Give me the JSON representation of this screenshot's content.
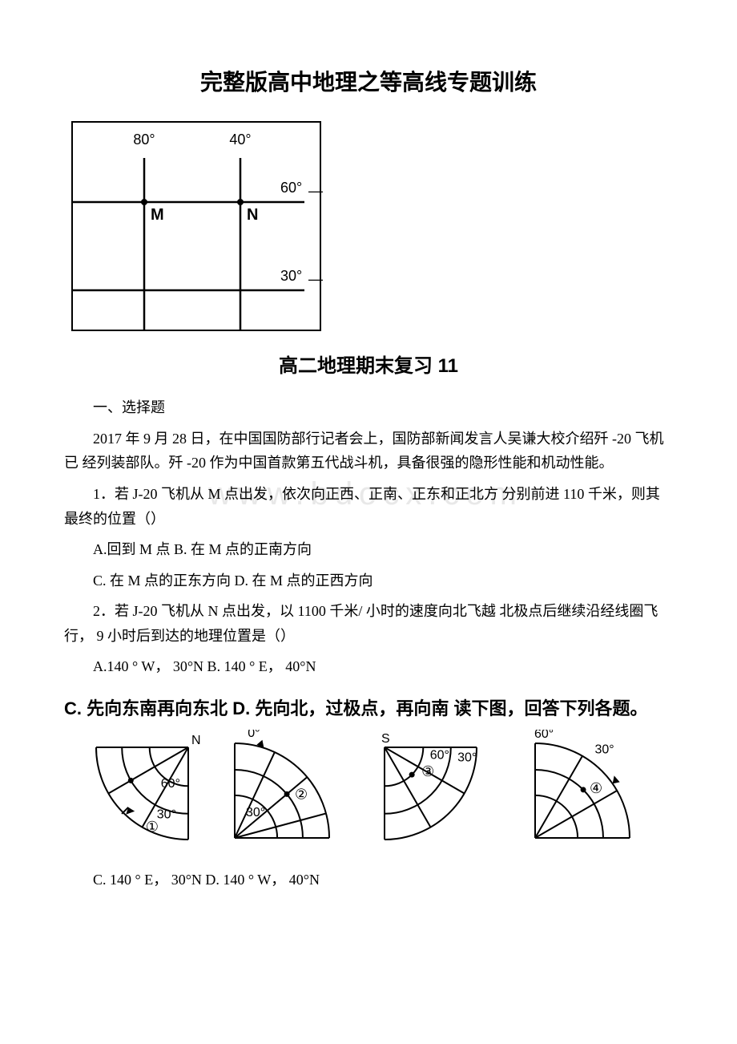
{
  "title": "完整版高中地理之等高线专题训练",
  "grid_map": {
    "lon_labels": [
      "80°",
      "40°"
    ],
    "lat_labels": [
      "60°",
      "30°"
    ],
    "points": [
      "M",
      "N"
    ],
    "stroke": "#000000",
    "font_size": 18
  },
  "subtitle": "高二地理期末复习 11",
  "section1": "一、选择题",
  "intro_para": "2017 年 9 月 28 日，在中国国防部行记者会上，国防部新闻发言人吴谦大校介绍歼 -20 飞机已 经列装部队。歼 -20 作为中国首款第五代战斗机，具备很强的隐形性能和机动性能。",
  "watermark_text": "www.bdocx.com",
  "q1": "1．若 J-20 飞机从 M 点出发，依次向正西、正南、正东和正北方 分别前进 110 千米，则其最终的位置（）",
  "q1_ab": "A.回到 M 点 B. 在 M 点的正南方向",
  "q1_cd": "C. 在 M 点的正东方向 D. 在 M 点的正西方向",
  "q2": "2．若 J-20 飞机从 N 点出发，以 1100 千米/ 小时的速度向北飞越 北极点后继续沿经线圈飞行， 9 小时后到达的地理位置是（）",
  "q2_ab": "A.140 ° W，  30°N B. 140 ° E，  40°N",
  "heavy_line": "C.  先向东南再向东北  D.  先向北，过极点，再向南  读下图，回答下列各题。",
  "globes": {
    "stroke": "#000000",
    "stroke_width": 2,
    "g1": {
      "pole": "N",
      "lat1": "60°",
      "lat2": "30°",
      "circ": "①"
    },
    "g2": {
      "top": "0°",
      "mid": "30°",
      "circ": "②"
    },
    "g3": {
      "pole": "S",
      "lat1": "60°",
      "lat2": "30°",
      "circ": "③"
    },
    "g4": {
      "top": "60°",
      "side": "30°",
      "circ": "④"
    }
  },
  "q2_cd": "C. 140 ° E，  30°N D. 140 ° W，  40°N"
}
